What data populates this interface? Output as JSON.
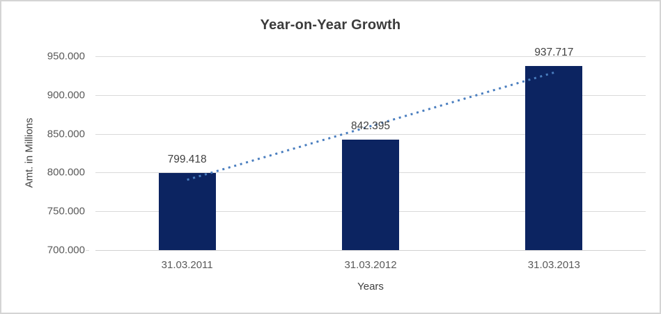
{
  "window": {
    "background": "#ffffff",
    "border_color": "#d4d4d4"
  },
  "chart_data": {
    "type": "bar",
    "title": "Year-on-Year Growth",
    "xlabel": "Years",
    "ylabel": "Amt. in Millions",
    "categories": [
      "31.03.2011",
      "31.03.2012",
      "31.03.2013"
    ],
    "values": [
      799.418,
      842.395,
      937.717
    ],
    "value_labels": [
      "799.418",
      "842.395",
      "937.717"
    ],
    "ylim": [
      700,
      950
    ],
    "ytick_step": 50,
    "ytick_labels": [
      "700.000",
      "750.000",
      "800.000",
      "850.000",
      "900.000",
      "950.000"
    ],
    "grid": "horizontal-only",
    "legend": "none",
    "trendline": {
      "fit": "linear",
      "style": "dotted",
      "color": "#4a7ebf"
    },
    "colors": {
      "bar": "#0c2461",
      "gridline": "#d9d9d9",
      "baseline": "#d0d0d0",
      "tick_text": "#595959",
      "title_text": "#3b3b3b",
      "axis_title_text": "#404040",
      "data_label_text": "#404040"
    }
  }
}
